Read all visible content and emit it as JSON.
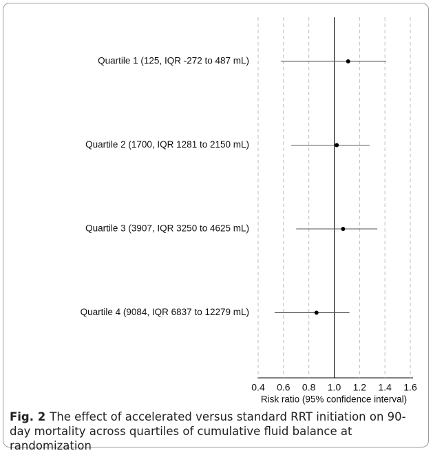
{
  "chart_data": {
    "type": "forest",
    "categories": [
      "Quartile 1 (125, IQR -272 to 487 mL)",
      "Quartile 2 (1700, IQR 1281 to 2150 mL)",
      "Quartile 3 (3907, IQR 3250 to 4625 mL)",
      "Quartile 4 (9084, IQR 6837 to 12279 mL)"
    ],
    "values": [
      1.11,
      1.02,
      1.07,
      0.86
    ],
    "lower": [
      0.58,
      0.66,
      0.7,
      0.53
    ],
    "upper": [
      1.41,
      1.28,
      1.34,
      1.12
    ],
    "color": "#000000",
    "xlabel": "Risk ratio (95% confidence interval)",
    "xlim": [
      0.4,
      1.6
    ],
    "xticks": [
      0.4,
      0.6,
      0.8,
      {
        "value": 1,
        "label": "1.0"
      },
      1.2,
      1.4,
      1.6
    ],
    "reference_line": 1,
    "grid": true
  },
  "caption": {
    "label": "Fig. 2",
    "text": "The effect of accelerated versus standard RRT initiation on 90-day mortality across quartiles of cumulative fluid balance at randomization"
  }
}
